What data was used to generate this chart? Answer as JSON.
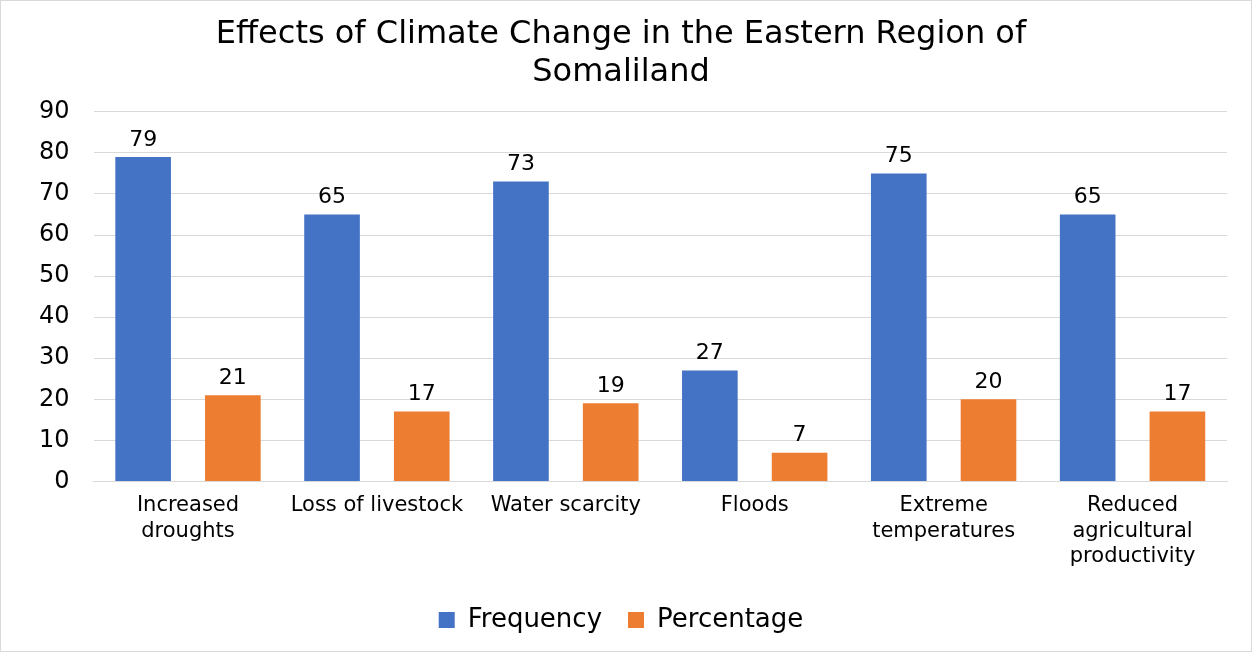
{
  "chart_data": {
    "type": "bar",
    "title": "Effects of Climate Change in the Eastern Region of Somaliland",
    "categories": [
      "Increased droughts",
      "Loss of livestock",
      "Water scarcity",
      "Floods",
      "Extreme temperatures",
      "Reduced agricultural productivity"
    ],
    "series": [
      {
        "name": "Frequency",
        "color": "#4472c4",
        "values": [
          79,
          65,
          73,
          27,
          75,
          65
        ]
      },
      {
        "name": "Percentage",
        "color": "#ed7d31",
        "values": [
          21,
          17,
          19,
          7,
          20,
          17
        ]
      }
    ],
    "ylim": [
      0,
      90
    ],
    "yticks": [
      0,
      10,
      20,
      30,
      40,
      50,
      60,
      70,
      80,
      90
    ],
    "grid": "y",
    "legend": "bottom",
    "data_labels": true
  }
}
